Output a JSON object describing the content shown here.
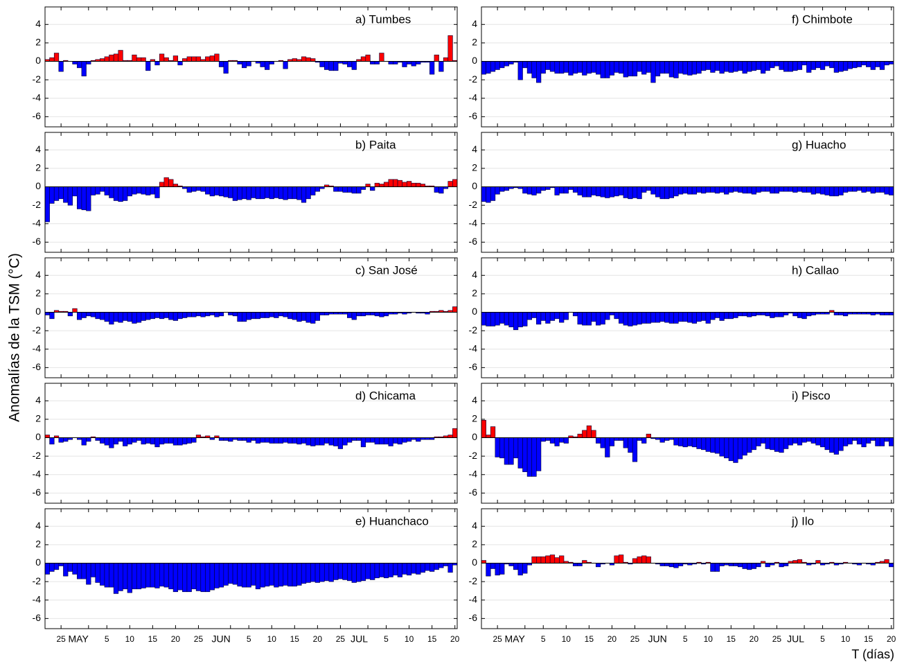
{
  "chart_data": {
    "type": "bar",
    "ylabel": "Anomalías de la TSM (°C)",
    "xlabel": "T (días)",
    "categories": [
      null,
      null,
      null,
      "25",
      null,
      null,
      null,
      null,
      null,
      "MAY",
      null,
      null,
      null,
      "5",
      null,
      null,
      null,
      null,
      "10",
      null,
      null,
      null,
      null,
      "15",
      null,
      null,
      null,
      null,
      "20",
      null,
      null,
      null,
      null,
      "25",
      null,
      null,
      null,
      null,
      null,
      null,
      "JUN",
      null,
      null,
      null,
      "5",
      null,
      null,
      null,
      null,
      "10",
      null,
      null,
      null,
      null,
      "15",
      null,
      null,
      null,
      null,
      "20",
      null,
      null,
      null,
      null,
      "25",
      null,
      null,
      null,
      null,
      null,
      "JUL",
      null,
      null,
      null,
      "5",
      null,
      null,
      null,
      null,
      "10",
      null,
      null,
      null,
      null,
      "15",
      null,
      null,
      null,
      null,
      "20"
    ],
    "ylim": [
      -7.1,
      5.9
    ],
    "yticks": [
      -6,
      -4,
      -2,
      0,
      2,
      4
    ],
    "grid": true,
    "positive_color": "#ff0000",
    "negative_color": "#0000ff",
    "series": [
      {
        "name": "a) Tumbes",
        "values": [
          0.2,
          0.4,
          0.9,
          -1.1,
          0.1,
          0,
          -0.3,
          -0.7,
          -1.6,
          -0.3,
          0.1,
          0.2,
          0.3,
          0.5,
          0.7,
          0.8,
          1.2,
          0.1,
          0.1,
          0.7,
          0.4,
          0.4,
          -1.0,
          0.2,
          -0.4,
          0.8,
          0.4,
          0.1,
          0.6,
          -0.4,
          0.3,
          0.5,
          0.5,
          0.5,
          0.2,
          0.5,
          0.6,
          0.8,
          -0.6,
          -1.3,
          0.1,
          0.1,
          -0.3,
          -0.7,
          -0.5,
          0,
          -0.2,
          -0.6,
          -0.9,
          -0.3,
          0,
          0.1,
          -0.8,
          0.2,
          0.3,
          0.2,
          0.5,
          0.4,
          0.3,
          -0.1,
          -0.6,
          -0.9,
          -1.0,
          -1.0,
          -0.2,
          -0.3,
          -0.6,
          -0.9,
          0.2,
          0.5,
          0.7,
          -0.3,
          -0.3,
          0.9,
          0,
          -0.3,
          -0.3,
          -0.1,
          -0.6,
          -0.3,
          -0.5,
          -0.3,
          -0.1,
          -0.1,
          -1.4,
          0.7,
          -1.1,
          0.4,
          2.8,
          0.1
        ]
      },
      {
        "name": "b) Paita",
        "values": [
          -3.8,
          -1.8,
          -1.5,
          -1.3,
          -1.7,
          -2.0,
          -1.0,
          -2.4,
          -2.5,
          -2.6,
          -0.9,
          -0.8,
          -0.5,
          -0.9,
          -1.2,
          -1.5,
          -1.6,
          -1.5,
          -1.0,
          -0.8,
          -0.7,
          -0.8,
          -0.9,
          -0.8,
          -1.2,
          0.5,
          1.0,
          0.8,
          0.3,
          0.1,
          -0.2,
          -0.6,
          -0.5,
          -0.4,
          -0.5,
          -0.8,
          -1.0,
          -0.9,
          -1.0,
          -1.1,
          -1.2,
          -1.5,
          -1.4,
          -1.3,
          -1.4,
          -1.2,
          -1.3,
          -1.3,
          -1.2,
          -1.3,
          -1.2,
          -1.3,
          -1.4,
          -1.3,
          -1.3,
          -1.4,
          -1.7,
          -1.3,
          -0.9,
          -0.5,
          -0.2,
          0.2,
          0.1,
          -0.5,
          -0.5,
          -0.6,
          -0.6,
          -0.7,
          -0.7,
          -0.3,
          0.3,
          -0.4,
          0.4,
          0.3,
          0.5,
          0.8,
          0.8,
          0.7,
          0.5,
          0.6,
          0.4,
          0.4,
          0.3,
          0.1,
          0.1,
          -0.6,
          -0.7,
          -0.2,
          0.6,
          0.8
        ]
      },
      {
        "name": "c) San José",
        "values": [
          -0.3,
          -0.7,
          0.2,
          0.1,
          0.1,
          -0.4,
          0.4,
          -0.8,
          -0.6,
          -0.4,
          -0.5,
          -0.7,
          -0.8,
          -1.0,
          -1.3,
          -1.0,
          -1.1,
          -0.9,
          -1.0,
          -1.2,
          -1.1,
          -0.9,
          -0.8,
          -0.7,
          -0.6,
          -0.7,
          -0.6,
          -0.8,
          -0.9,
          -0.7,
          -0.6,
          -0.5,
          -0.5,
          -0.4,
          -0.5,
          -0.4,
          -0.3,
          -0.5,
          -0.4,
          0,
          -0.3,
          -0.4,
          -1.0,
          -1.0,
          -0.8,
          -0.7,
          -0.7,
          -0.6,
          -0.6,
          -0.5,
          -0.6,
          -0.4,
          -0.5,
          -0.7,
          -0.8,
          -1.0,
          -0.9,
          -1.1,
          -1.2,
          -0.9,
          -0.3,
          -0.3,
          -0.2,
          -0.2,
          -0.2,
          -0.2,
          -0.6,
          -0.8,
          -0.4,
          -0.4,
          -0.3,
          -0.3,
          -0.4,
          -0.5,
          -0.4,
          -0.2,
          -0.2,
          -0.1,
          -0.2,
          -0.1,
          0,
          -0.1,
          -0.1,
          -0.2,
          0.1,
          0.1,
          0.2,
          0.1,
          0.2,
          0.6
        ]
      },
      {
        "name": "d) Chicama",
        "values": [
          0.3,
          -0.7,
          0.2,
          -0.5,
          -0.4,
          -0.2,
          0,
          -0.2,
          -0.8,
          -0.4,
          0.1,
          -0.3,
          -0.6,
          -0.8,
          -1.1,
          -0.7,
          -0.4,
          -0.9,
          -0.7,
          -0.5,
          -0.3,
          -0.7,
          -0.6,
          -0.7,
          -1.0,
          -0.7,
          -0.6,
          -0.6,
          -0.8,
          -0.8,
          -0.7,
          -0.6,
          -0.5,
          0.3,
          0.1,
          0.2,
          -0.2,
          0.2,
          -0.3,
          -0.3,
          -0.4,
          -0.2,
          -0.3,
          -0.3,
          -0.5,
          -0.3,
          -0.6,
          -0.5,
          -0.5,
          -0.6,
          -0.6,
          -0.6,
          -0.5,
          -0.6,
          -0.6,
          -0.7,
          -0.6,
          -0.8,
          -0.9,
          -0.8,
          -0.8,
          -0.6,
          -0.8,
          -0.9,
          -1.2,
          -0.8,
          -0.5,
          -0.3,
          -0.3,
          -1.0,
          -0.5,
          -0.5,
          -0.7,
          -0.7,
          -0.7,
          -0.9,
          -0.6,
          -0.7,
          -0.5,
          -0.4,
          -0.2,
          -0.4,
          -0.2,
          -0.2,
          -0.2,
          0.1,
          0.1,
          0.2,
          0.3,
          1.0
        ]
      },
      {
        "name": "e) Huanchaco",
        "values": [
          -1.2,
          -0.9,
          -0.7,
          -0.3,
          -1.4,
          -0.9,
          -1.2,
          -1.7,
          -1.7,
          -2.3,
          -1.5,
          -2.1,
          -2.4,
          -2.6,
          -2.6,
          -3.3,
          -3.0,
          -2.8,
          -3.2,
          -2.8,
          -2.8,
          -2.7,
          -2.6,
          -2.6,
          -2.7,
          -2.5,
          -2.6,
          -2.8,
          -3.1,
          -2.9,
          -3.1,
          -3.1,
          -2.8,
          -3.0,
          -3.1,
          -3.1,
          -2.9,
          -2.7,
          -2.6,
          -2.4,
          -2.2,
          -2.3,
          -2.5,
          -2.6,
          -2.6,
          -2.4,
          -2.8,
          -2.6,
          -2.5,
          -2.4,
          -2.6,
          -2.5,
          -2.4,
          -2.5,
          -2.5,
          -2.4,
          -2.2,
          -2.1,
          -2.0,
          -2.1,
          -2.0,
          -1.9,
          -2.0,
          -1.8,
          -1.7,
          -1.8,
          -1.9,
          -2.1,
          -2.0,
          -1.9,
          -1.7,
          -1.8,
          -1.6,
          -1.5,
          -1.6,
          -1.5,
          -1.3,
          -1.5,
          -1.2,
          -1.3,
          -1.1,
          -1.2,
          -1.0,
          -0.8,
          -0.9,
          -0.7,
          -0.5,
          -0.3,
          -1.0,
          -0.2
        ]
      },
      {
        "name": "f) Chimbote",
        "values": [
          -1.4,
          -1.3,
          -1.1,
          -0.9,
          -0.7,
          -0.5,
          -0.3,
          -0.1,
          -2.0,
          -0.7,
          -1.3,
          -1.8,
          -2.3,
          -1.3,
          -0.9,
          -1.1,
          -1.3,
          -1.3,
          -1.2,
          -1.5,
          -1.3,
          -1.2,
          -1.5,
          -1.3,
          -1.2,
          -1.4,
          -1.8,
          -1.8,
          -1.5,
          -1.2,
          -1.3,
          -1.7,
          -1.6,
          -1.6,
          -1.1,
          -1.4,
          -1.2,
          -2.3,
          -1.6,
          -1.3,
          -1.3,
          -1.7,
          -1.8,
          -1.3,
          -1.4,
          -1.5,
          -1.4,
          -1.3,
          -1.0,
          -0.9,
          -1.2,
          -1.0,
          -1.3,
          -1.1,
          -1.2,
          -1.1,
          -1.0,
          -1.3,
          -1.1,
          -1.0,
          -0.9,
          -1.3,
          -1.0,
          -0.7,
          -0.5,
          -0.9,
          -1.1,
          -1.1,
          -1.0,
          -0.9,
          -0.4,
          -1.2,
          -0.9,
          -0.7,
          -0.9,
          -0.5,
          -0.7,
          -1.2,
          -1.1,
          -1.0,
          -0.8,
          -0.7,
          -0.6,
          -0.4,
          -0.6,
          -0.9,
          -0.6,
          -0.9,
          -0.4,
          -0.3
        ]
      },
      {
        "name": "g) Huacho",
        "values": [
          -1.6,
          -1.7,
          -1.5,
          -0.8,
          -0.5,
          -0.4,
          -0.2,
          -0.1,
          -0.2,
          -0.7,
          -0.8,
          -0.9,
          -0.7,
          -0.4,
          -0.3,
          -0.1,
          -0.9,
          -0.7,
          -0.7,
          -0.3,
          -0.6,
          -0.9,
          -1.1,
          -1.1,
          -0.9,
          -1.0,
          -1.1,
          -1.2,
          -1.1,
          -1.0,
          -0.9,
          -1.2,
          -1.3,
          -1.2,
          -1.3,
          -0.6,
          -0.4,
          -0.8,
          -1.1,
          -1.3,
          -1.3,
          -1.2,
          -1.0,
          -0.8,
          -0.7,
          -0.8,
          -0.8,
          -0.6,
          -0.7,
          -0.6,
          -0.6,
          -0.7,
          -0.6,
          -0.8,
          -0.6,
          -0.5,
          -0.6,
          -0.7,
          -0.7,
          -0.8,
          -0.6,
          -0.5,
          -0.5,
          -0.7,
          -0.7,
          -0.5,
          -0.5,
          -0.5,
          -0.6,
          -0.5,
          -0.6,
          -0.6,
          -0.8,
          -0.7,
          -0.8,
          -0.9,
          -1.0,
          -1.0,
          -0.9,
          -0.6,
          -0.5,
          -0.5,
          -0.4,
          -0.6,
          -0.5,
          -0.7,
          -0.6,
          -0.6,
          -0.8,
          -0.9
        ]
      },
      {
        "name": "h) Callao",
        "values": [
          -1.4,
          -1.5,
          -1.5,
          -1.4,
          -1.2,
          -1.4,
          -1.6,
          -1.9,
          -1.6,
          -1.5,
          -0.8,
          -0.6,
          -1.3,
          -0.9,
          -1.2,
          -0.9,
          -0.7,
          -1.1,
          -0.8,
          0,
          -0.4,
          -1.3,
          -1.4,
          -1.4,
          -1.0,
          -1.4,
          -1.3,
          -0.8,
          -0.3,
          -0.7,
          -1.2,
          -1.4,
          -1.5,
          -1.4,
          -1.3,
          -1.2,
          -1.2,
          -1.1,
          -1.1,
          -1.0,
          -1.1,
          -1.2,
          -1.2,
          -1.0,
          -1.0,
          -1.1,
          -1.2,
          -1.0,
          -0.9,
          -1.2,
          -0.8,
          -0.6,
          -0.9,
          -0.7,
          -0.7,
          -0.6,
          -0.4,
          -0.4,
          -0.5,
          -0.4,
          -0.3,
          -0.3,
          -0.4,
          -0.6,
          -0.5,
          -0.5,
          -0.3,
          -0.1,
          -0.4,
          -0.6,
          -0.7,
          -0.4,
          -0.3,
          -0.2,
          -0.2,
          -0.2,
          0.2,
          -0.3,
          -0.3,
          -0.4,
          -0.2,
          -0.2,
          -0.2,
          -0.2,
          -0.2,
          -0.3,
          -0.2,
          -0.3,
          -0.3,
          -0.3
        ]
      },
      {
        "name": "i) Pisco",
        "values": [
          1.9,
          0.3,
          1.2,
          -2.1,
          -2.2,
          -2.9,
          -2.9,
          -2.2,
          -3.3,
          -3.7,
          -4.2,
          -4.2,
          -3.6,
          -0.4,
          -0.3,
          -0.6,
          -0.9,
          -0.5,
          -0.6,
          0.2,
          0.1,
          0.4,
          0.8,
          1.3,
          0.8,
          -0.6,
          -1.1,
          -2.1,
          -0.9,
          -0.3,
          -0.3,
          -1.1,
          -1.6,
          -2.6,
          -0.3,
          -0.6,
          0.4,
          -0.1,
          -0.2,
          -0.5,
          -0.3,
          -0.2,
          -0.8,
          -0.9,
          -1.0,
          -0.9,
          -1.0,
          -1.2,
          -1.3,
          -1.5,
          -1.6,
          -1.7,
          -2.0,
          -2.2,
          -2.5,
          -2.7,
          -2.3,
          -1.9,
          -1.6,
          -1.3,
          -0.9,
          -0.6,
          -1.2,
          -1.3,
          -1.5,
          -1.6,
          -1.2,
          -0.8,
          -0.6,
          -0.8,
          -0.5,
          -0.4,
          -0.6,
          -0.8,
          -1.0,
          -1.3,
          -1.6,
          -1.8,
          -1.4,
          -0.9,
          -0.7,
          -0.3,
          -0.7,
          -1.0,
          -0.6,
          -0.3,
          -0.9,
          -0.9,
          -0.4,
          -0.9
        ]
      },
      {
        "name": "j) Ilo",
        "values": [
          0.3,
          -1.4,
          -0.6,
          -1.3,
          -1.2,
          -0.1,
          -0.3,
          -0.7,
          -1.3,
          -1.1,
          -0.2,
          0.7,
          0.7,
          0.7,
          0.8,
          0.9,
          0.6,
          0.8,
          0.2,
          0.1,
          -0.3,
          -0.3,
          0.3,
          0.1,
          0,
          -0.4,
          -0.1,
          0,
          -0.2,
          0.8,
          0.9,
          0.1,
          -0.1,
          0.5,
          0.7,
          0.8,
          0.7,
          0,
          -0.1,
          -0.3,
          -0.3,
          -0.4,
          -0.5,
          -0.3,
          -0.1,
          -0.2,
          -0.1,
          0.1,
          -0.1,
          0.1,
          -0.9,
          -0.9,
          -0.3,
          -0.2,
          -0.3,
          -0.3,
          -0.4,
          -0.6,
          -0.7,
          -0.6,
          -0.4,
          0.2,
          -0.4,
          -0.2,
          0.1,
          -0.4,
          -0.3,
          0.2,
          0.3,
          0.4,
          0.1,
          -0.2,
          -0.1,
          0.3,
          -0.2,
          -0.1,
          0.1,
          -0.2,
          -0.1,
          0.1,
          0,
          -0.1,
          -0.2,
          0,
          -0.1,
          -0.2,
          0.1,
          0.2,
          0.4,
          -0.4
        ]
      }
    ]
  }
}
